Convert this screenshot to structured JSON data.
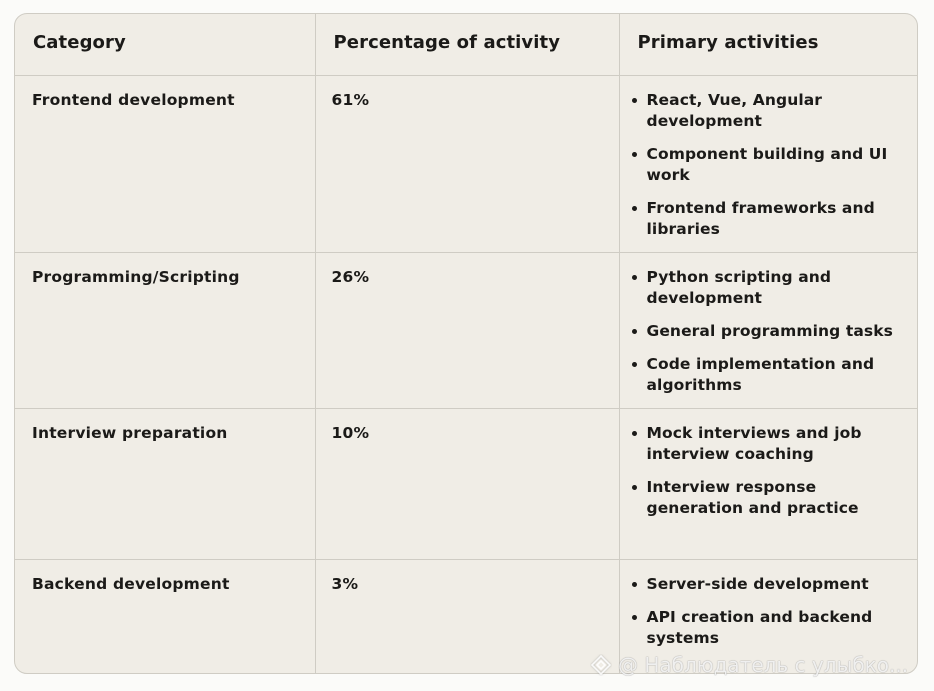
{
  "table": {
    "headers": [
      "Category",
      "Percentage of activity",
      "Primary activities"
    ],
    "rows": [
      {
        "category": "Frontend development",
        "percentage": "61%",
        "activities": [
          "React, Vue, Angular development",
          "Component building and UI work",
          "Frontend frameworks and libraries"
        ]
      },
      {
        "category": "Programming/Scripting",
        "percentage": "26%",
        "activities": [
          "Python scripting and development",
          "General programming tasks",
          "Code implementation and algorithms"
        ]
      },
      {
        "category": "Interview preparation",
        "percentage": "10%",
        "activities": [
          "Mock interviews and job interview coaching",
          "Interview response generation and practice"
        ]
      },
      {
        "category": "Backend development",
        "percentage": "3%",
        "activities": [
          "Server-side development",
          "API creation and backend systems"
        ]
      }
    ]
  },
  "watermark": {
    "text": "@ Наблюдатель с улыбко...",
    "icon": "diamond-logo-icon"
  },
  "colors": {
    "background": "#f0ede6",
    "border": "#cfccc4",
    "text": "#1b1a18"
  }
}
